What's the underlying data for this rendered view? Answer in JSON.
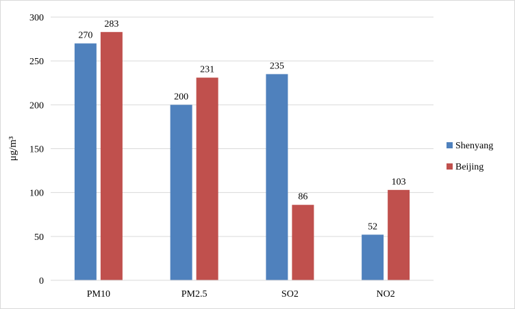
{
  "chart_data": {
    "type": "bar",
    "title": "",
    "xlabel": "",
    "ylabel": "μg/m³",
    "categories": [
      "PM10",
      "PM2.5",
      "SO2",
      "NO2"
    ],
    "series": [
      {
        "name": "Shenyang",
        "color": "#4f81bd",
        "values": [
          270,
          200,
          235,
          52
        ]
      },
      {
        "name": "Beijing",
        "color": "#c0504d",
        "values": [
          283,
          231,
          86,
          103
        ]
      }
    ],
    "ylim": [
      0,
      300
    ],
    "yticks": [
      "0",
      "50",
      "100",
      "150",
      "200",
      "250",
      "300"
    ],
    "ytick_values": [
      0,
      50,
      100,
      150,
      200,
      250,
      300
    ],
    "grid": true,
    "grid_color": "#d9d9d9",
    "legend_position": "right",
    "data_labels": true
  }
}
